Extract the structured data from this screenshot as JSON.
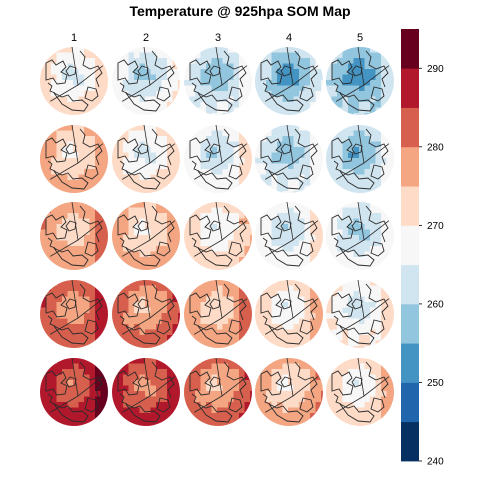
{
  "chart_data": {
    "type": "heatmap",
    "title": "Temperature @ 925hpa SOM Map",
    "column_labels": [
      "1",
      "2",
      "3",
      "4",
      "5"
    ],
    "grid": {
      "rows": 5,
      "cols": 5
    },
    "colorbar": {
      "min": 240,
      "max": 295,
      "step": 5,
      "ticks": [
        240,
        250,
        260,
        270,
        280,
        290
      ],
      "colors": [
        "#053061",
        "#2166ac",
        "#4393c3",
        "#92c5de",
        "#d1e5f0",
        "#f7f7f7",
        "#fddbc7",
        "#f4a582",
        "#d6604d",
        "#b2182b",
        "#67001f"
      ]
    },
    "panel_mean_temperature_K": [
      [
        268,
        264,
        262,
        259,
        257
      ],
      [
        273,
        268,
        265,
        262,
        260
      ],
      [
        276,
        273,
        269,
        265,
        263
      ],
      [
        281,
        279,
        275,
        270,
        267
      ],
      [
        285,
        283,
        279,
        274,
        270
      ]
    ],
    "panel_polar_temperature_K": [
      [
        262,
        257,
        254,
        251,
        250
      ],
      [
        268,
        262,
        258,
        255,
        253
      ],
      [
        270,
        268,
        264,
        259,
        257
      ],
      [
        275,
        273,
        270,
        264,
        261
      ],
      [
        279,
        277,
        273,
        268,
        264
      ]
    ]
  }
}
